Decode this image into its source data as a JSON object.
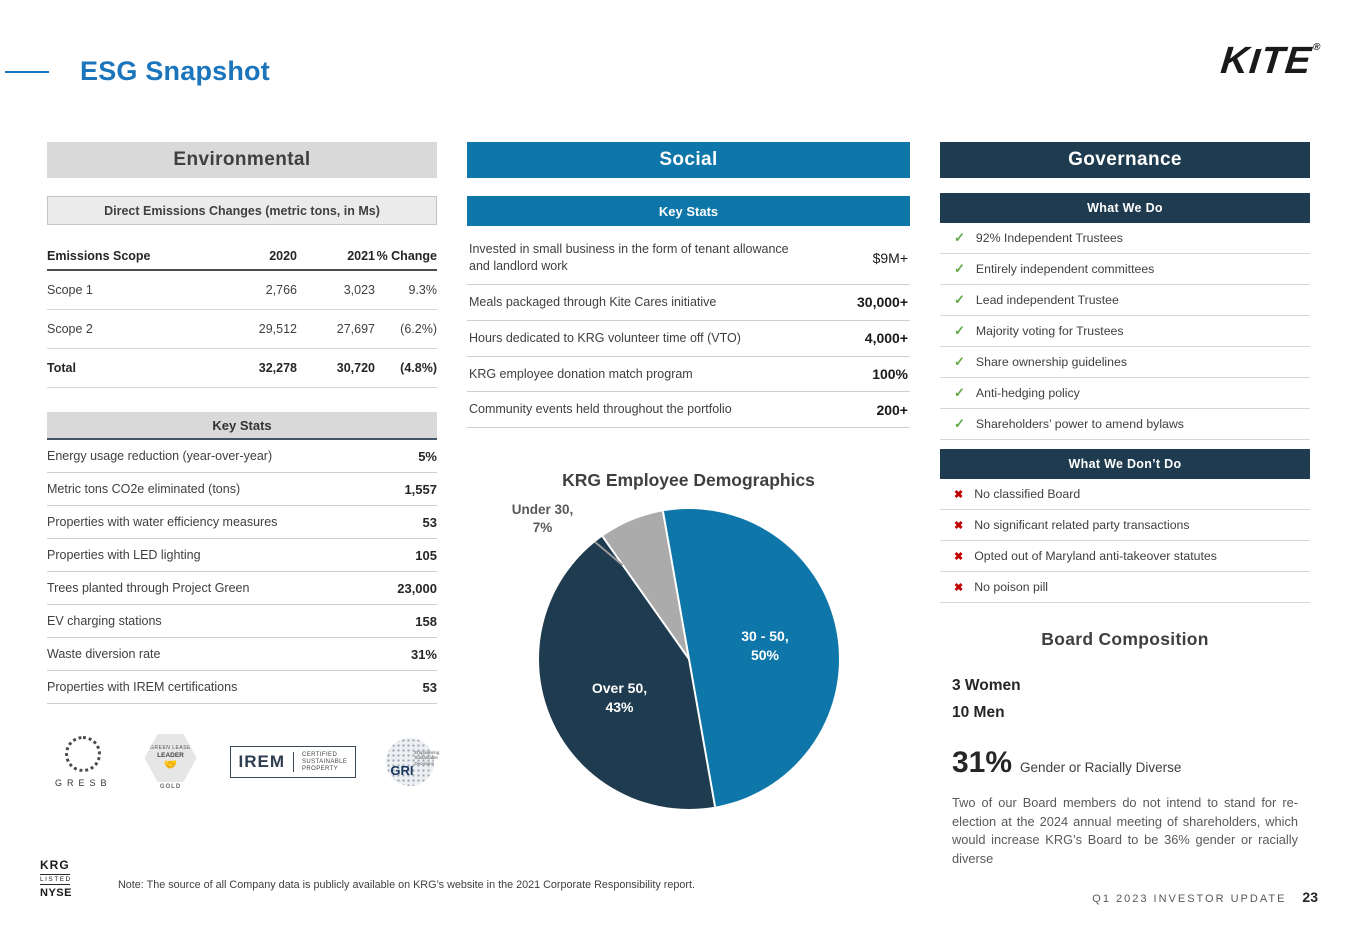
{
  "colors": {
    "accent_blue": "#1B75BC",
    "social_blue": "#0E76A8",
    "navy": "#1F3B4F",
    "header_gray": "#D9D9D9",
    "check_green": "#5FA845",
    "x_red": "#C00000"
  },
  "page": {
    "title": "ESG Snapshot",
    "brand": "KITE",
    "brand_reg": "®"
  },
  "environmental": {
    "header": "Environmental",
    "emissions": {
      "title": "Direct Emissions Changes (metric tons, in Ms)",
      "columns": [
        "Emissions Scope",
        "2020",
        "2021",
        "% Change"
      ],
      "rows": [
        {
          "label": "Scope 1",
          "y2020": "2,766",
          "y2021": "3,023",
          "change": "9.3%",
          "bold": false
        },
        {
          "label": "Scope 2",
          "y2020": "29,512",
          "y2021": "27,697",
          "change": "(6.2%)",
          "bold": false
        },
        {
          "label": "Total",
          "y2020": "32,278",
          "y2021": "30,720",
          "change": "(4.8%)",
          "bold": true
        }
      ]
    },
    "key_stats": {
      "title": "Key Stats",
      "rows": [
        {
          "label": "Energy usage reduction (year-over-year)",
          "value": "5%"
        },
        {
          "label": "Metric tons CO2e eliminated (tons)",
          "value": "1,557"
        },
        {
          "label": "Properties with water efficiency measures",
          "value": "53"
        },
        {
          "label": "Properties with LED lighting",
          "value": "105"
        },
        {
          "label": "Trees planted through Project Green",
          "value": "23,000"
        },
        {
          "label": "EV charging stations",
          "value": "158"
        },
        {
          "label": "Waste diversion rate",
          "value": "31%"
        },
        {
          "label": "Properties with IREM certifications",
          "value": "53"
        }
      ]
    },
    "certifications": {
      "gresb": "GRESB",
      "green_lease": {
        "line1": "GREEN LEASE",
        "line2": "LEADER",
        "hands": "🤝",
        "badge": "GOLD"
      },
      "irem": {
        "name": "IREM",
        "side1": "CERTIFIED",
        "side2": "SUSTAINABLE",
        "side3": "PROPERTY"
      },
      "gri": {
        "name": "GRI",
        "tagline": "Empowering Sustainable Decisions"
      }
    }
  },
  "social": {
    "header": "Social",
    "key_stats_title": "Key Stats",
    "stats": [
      {
        "label": "Invested in small business in the form of tenant allowance and landlord work",
        "value": "$9M+",
        "strong": false
      },
      {
        "label": "Meals packaged through Kite Cares initiative",
        "value": "30,000+",
        "strong": true
      },
      {
        "label": "Hours dedicated to KRG volunteer time off (VTO)",
        "value": "4,000+",
        "strong": true
      },
      {
        "label": "KRG employee donation match program",
        "value": "100%",
        "strong": true
      },
      {
        "label": "Community events held throughout the portfolio",
        "value": "200+",
        "strong": true
      }
    ]
  },
  "chart_data": {
    "type": "pie",
    "title": "KRG Employee Demographics",
    "start_angle_deg": -10,
    "slices": [
      {
        "label": "30 - 50",
        "value": 50,
        "color": "#0E76A8"
      },
      {
        "label": "Over 50",
        "value": 43,
        "color": "#1F3B4F"
      },
      {
        "label": "Under 30",
        "value": 7,
        "color": "#ABABAB"
      }
    ]
  },
  "governance": {
    "header": "Governance",
    "check_glyph": "✓",
    "x_glyph": "✖",
    "what_we_do": {
      "title": "What We Do",
      "items": [
        "92% Independent Trustees",
        "Entirely independent committees",
        "Lead independent Trustee",
        "Majority voting for Trustees",
        "Share ownership guidelines",
        "Anti-hedging policy",
        "Shareholders’ power to amend bylaws"
      ]
    },
    "what_we_dont": {
      "title": "What We Don’t Do",
      "items": [
        "No classified Board",
        "No significant related party transactions",
        "Opted out of Maryland anti-takeover statutes",
        "No poison pill"
      ]
    },
    "board": {
      "title": "Board Composition",
      "women": "3 Women",
      "men": "10 Men",
      "diverse_pct": "31%",
      "diverse_label": "Gender or Racially Diverse",
      "note": "Two of our Board members do not intend to stand for re-election at the 2024 annual meeting of shareholders, which would increase KRG’s Board to be 36% gender or racially diverse"
    }
  },
  "footer": {
    "stock": {
      "line1": "KRG",
      "line2": "LISTED",
      "line3": "NYSE"
    },
    "note": "Note: The source of all Company data is publicly available on KRG’s website in the 2021 Corporate Responsibility report.",
    "update_label": "Q1 2023 INVESTOR UPDATE",
    "page_number": "23"
  }
}
